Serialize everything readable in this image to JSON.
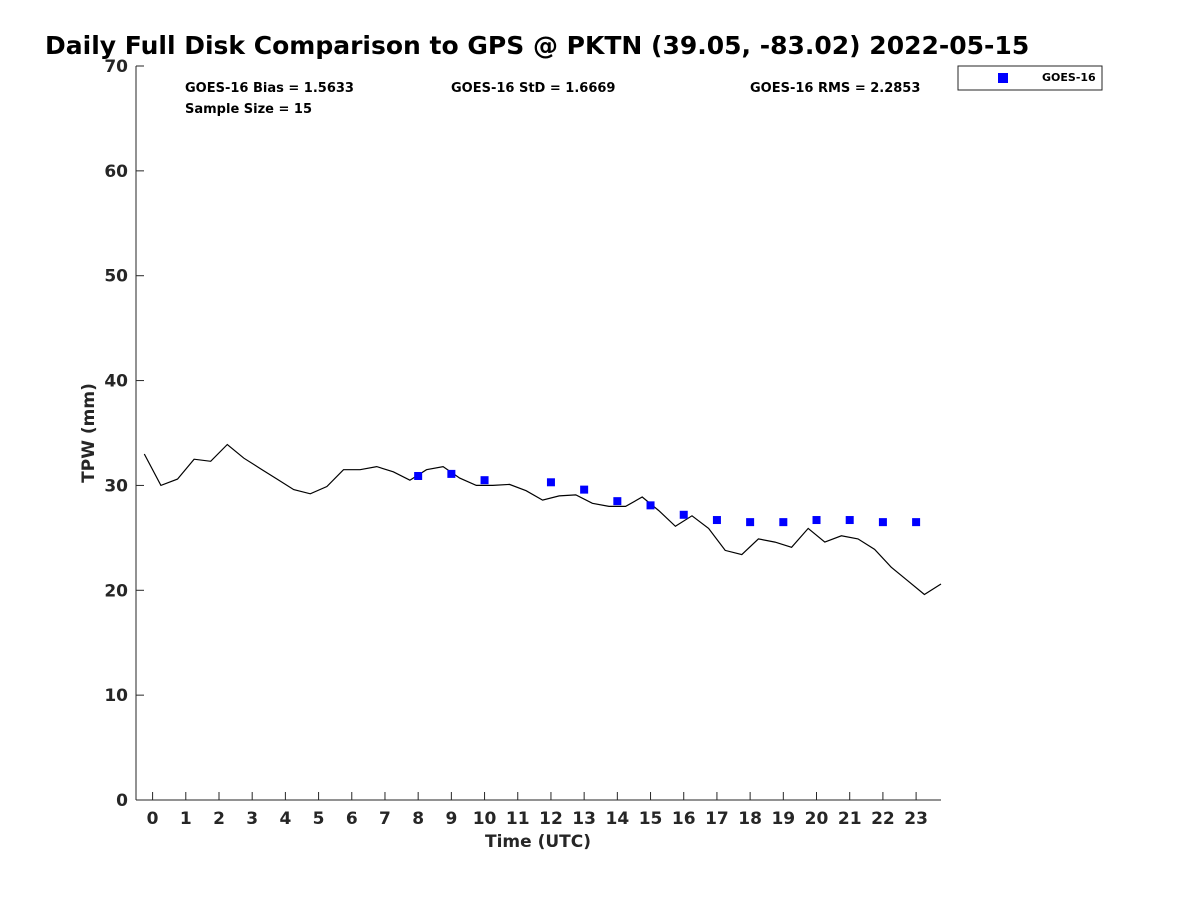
{
  "chart_data": {
    "type": "scatter",
    "title": "Daily Full Disk Comparison to GPS @ PKTN (39.05, -83.02) 2022-05-15",
    "xlabel": "Time (UTC)",
    "ylabel": "TPW (mm)",
    "xlim": [
      -0.5,
      23.75
    ],
    "ylim": [
      0,
      70
    ],
    "x_ticks": [
      "0",
      "1",
      "2",
      "3",
      "4",
      "5",
      "6",
      "7",
      "8",
      "9",
      "10",
      "11",
      "12",
      "13",
      "14",
      "15",
      "16",
      "17",
      "18",
      "19",
      "20",
      "21",
      "22",
      "23"
    ],
    "y_ticks": [
      "0",
      "10",
      "20",
      "30",
      "40",
      "50",
      "60",
      "70"
    ],
    "grid": false,
    "legend_position": "top-right",
    "stats": {
      "bias": "GOES-16 Bias = 1.5633",
      "std": "GOES-16 StD = 1.6669",
      "rms": "GOES-16 RMS = 2.2853",
      "sample": "Sample Size = 15"
    },
    "series": [
      {
        "kind": "line",
        "color": "#000000",
        "x": [
          -0.25,
          0.25,
          0.75,
          1.25,
          1.75,
          2.25,
          2.75,
          3.25,
          3.75,
          4.25,
          4.75,
          5.25,
          5.75,
          6.25,
          6.75,
          7.25,
          7.75,
          8.25,
          8.75,
          9.25,
          9.75,
          10.25,
          10.75,
          11.25,
          11.75,
          12.25,
          12.75,
          13.25,
          13.75,
          14.25,
          14.75,
          15.25,
          15.75,
          16.25,
          16.75,
          17.25,
          17.75,
          18.25,
          18.75,
          19.25,
          19.75,
          20.25,
          20.75,
          21.25,
          21.75,
          22.25,
          22.75,
          23.25,
          23.75
        ],
        "y": [
          33.0,
          30.0,
          30.6,
          32.5,
          32.3,
          33.9,
          32.6,
          31.6,
          30.6,
          29.6,
          29.2,
          29.9,
          31.5,
          31.5,
          31.8,
          31.3,
          30.5,
          31.5,
          31.8,
          30.7,
          30.0,
          30.0,
          30.1,
          29.5,
          28.6,
          29.0,
          29.1,
          28.3,
          28.0,
          28.0,
          28.9,
          27.6,
          26.1,
          27.1,
          25.9,
          23.8,
          23.4,
          24.9,
          24.6,
          24.1,
          25.9,
          24.6,
          25.2,
          24.9,
          23.9,
          22.2,
          20.9,
          19.6,
          20.6
        ]
      },
      {
        "kind": "scatter",
        "name": "GOES-16",
        "color": "#0000ff",
        "x": [
          8,
          9,
          10,
          12,
          13,
          14,
          15,
          16,
          17,
          18,
          19,
          20,
          21,
          22,
          23
        ],
        "y": [
          30.9,
          31.1,
          30.5,
          30.3,
          29.6,
          28.5,
          28.1,
          27.2,
          26.7,
          26.5,
          26.5,
          26.7,
          26.7,
          26.5,
          26.5
        ]
      }
    ]
  }
}
